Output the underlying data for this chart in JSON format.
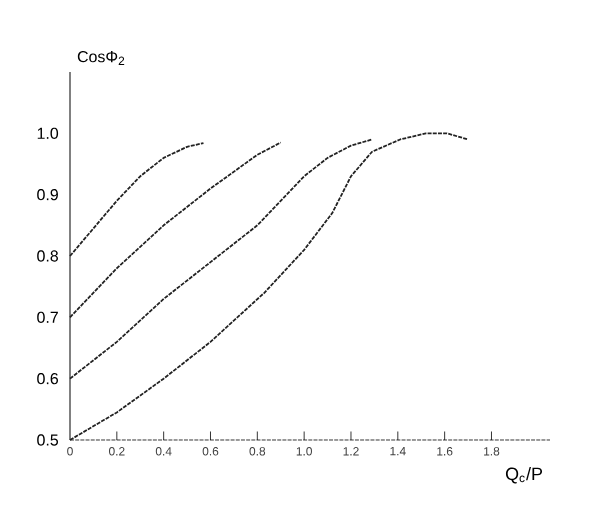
{
  "chart_data": {
    "type": "line",
    "xlabel": "Q$_{c}$/P",
    "ylabel": "CosΦ$_{2}$",
    "xlim": [
      0,
      2.05
    ],
    "ylim": [
      0.5,
      1.1
    ],
    "xticks": [
      0,
      0.2,
      0.4,
      0.6,
      0.8,
      {
        "value": 1,
        "label": "1.0"
      },
      1.2,
      1.4,
      1.6,
      1.8
    ],
    "yticks": [
      0.5,
      0.6,
      0.7,
      0.8,
      0.9,
      {
        "value": 1,
        "label": "1.0"
      }
    ],
    "grid": false,
    "marker": "none",
    "line_style": "dashed",
    "series": [
      {
        "color": "#222222",
        "x": [
          0,
          0.1,
          0.2,
          0.3,
          0.4,
          0.5,
          0.57
        ],
        "values": [
          0.8,
          0.845,
          0.89,
          0.93,
          0.96,
          0.978,
          0.984
        ]
      },
      {
        "color": "#222222",
        "x": [
          0,
          0.2,
          0.4,
          0.6,
          0.8,
          0.9
        ],
        "values": [
          0.7,
          0.78,
          0.85,
          0.91,
          0.965,
          0.985
        ]
      },
      {
        "color": "#222222",
        "x": [
          0,
          0.2,
          0.4,
          0.6,
          0.8,
          1.0,
          1.1,
          1.2,
          1.29
        ],
        "values": [
          0.6,
          0.66,
          0.73,
          0.79,
          0.85,
          0.93,
          0.96,
          0.98,
          0.99
        ]
      },
      {
        "color": "#222222",
        "x": [
          0,
          0.2,
          0.4,
          0.6,
          0.83,
          1.0,
          1.12,
          1.2,
          1.29,
          1.41,
          1.52,
          1.61,
          1.7
        ],
        "values": [
          0.5,
          0.545,
          0.6,
          0.66,
          0.74,
          0.81,
          0.87,
          0.93,
          0.97,
          0.99,
          1.0,
          1.0,
          0.99
        ]
      }
    ]
  }
}
